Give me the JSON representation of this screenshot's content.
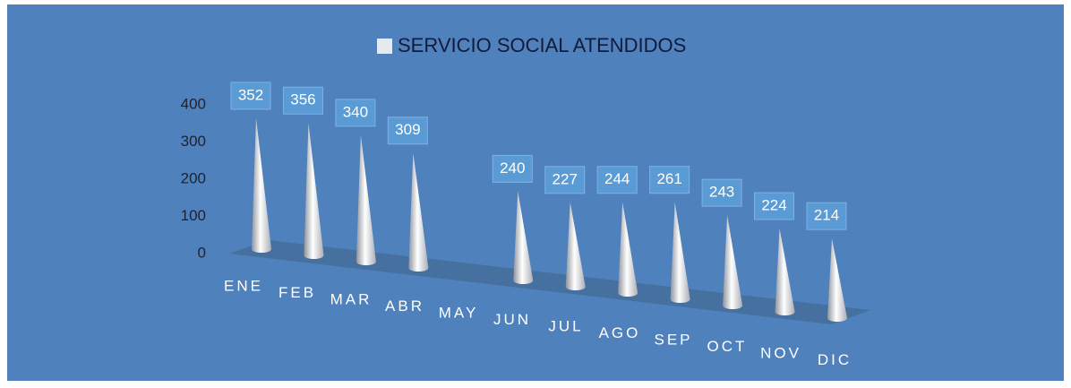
{
  "chart_data": {
    "type": "cone3d",
    "categories": [
      "ENE",
      "FEB",
      "MAR",
      "ABR",
      "MAY",
      "JUN",
      "JUL",
      "AGO",
      "SEP",
      "OCT",
      "NOV",
      "DIC"
    ],
    "series": [
      {
        "name": "SERVICIO SOCIAL  ATENDIDOS",
        "color": "#e6e9ee",
        "values": [
          352,
          356,
          340,
          309,
          null,
          240,
          227,
          244,
          261,
          243,
          224,
          214
        ]
      }
    ],
    "ylim": [
      0,
      400
    ],
    "yticks": [
      0,
      100,
      200,
      300,
      400
    ],
    "legend": "top"
  }
}
